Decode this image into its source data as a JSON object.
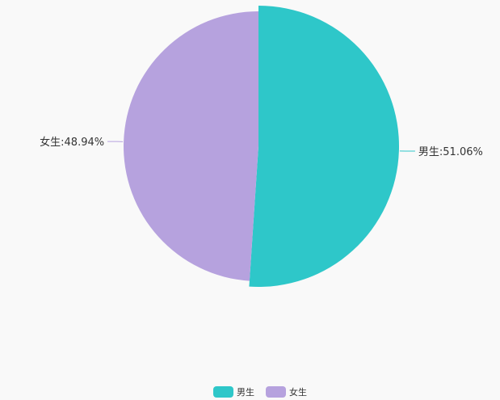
{
  "chart_data": {
    "type": "pie",
    "categories": [
      "男生",
      "女生"
    ],
    "values": [
      51.06,
      48.94
    ],
    "labels": [
      "男生:51.06%",
      "女生:48.94%"
    ],
    "colors": [
      "#2ec7c9",
      "#b6a2de"
    ],
    "legend": {
      "position": "bottom",
      "items": [
        "男生",
        "女生"
      ]
    },
    "highlighted": "男生"
  }
}
